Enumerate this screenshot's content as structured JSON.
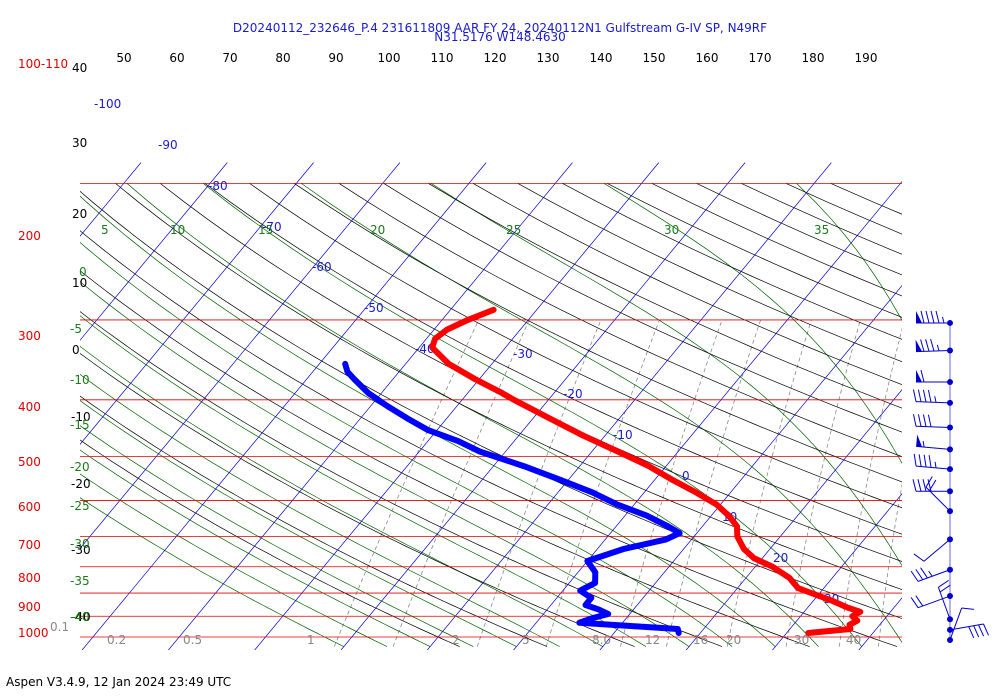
{
  "header": {
    "line1": "D20240112_232646_P.4 231611809 AAR FY 24, 20240112N1 Gulfstream G-IV SP, N49RF",
    "line2": "N31.5176 W148.4630"
  },
  "footer": {
    "version": "Aspen V3.4.9, 12 Jan 2024  23:49 UTC"
  },
  "colors": {
    "isobar": "#e00000",
    "isotherm": "#0000cc",
    "dry_adiabat": "#000000",
    "moist_adiabat": "#006400",
    "mixing_ratio": "#888888",
    "temperature": "#ff0000",
    "dewpoint": "#0000ff",
    "wind": "#0000cc"
  },
  "chart_data": {
    "type": "skew-t log-p",
    "pressure_axis": {
      "unit": "hPa",
      "labels": [
        "100-110",
        "200",
        "300",
        "400",
        "500",
        "600",
        "700",
        "800",
        "900",
        "1000"
      ]
    },
    "height_labels": [
      "40",
      "30",
      "20",
      "10",
      "0",
      "-10",
      "-20",
      "-30",
      "-40"
    ],
    "top_scale": [
      "50",
      "60",
      "70",
      "80",
      "90",
      "100",
      "110",
      "120",
      "130",
      "140",
      "150",
      "160",
      "170",
      "180",
      "190"
    ],
    "isotherm_labels": [
      "-100",
      "-90",
      "-80",
      "-70",
      "-60",
      "-50",
      "-40",
      "-30",
      "-20",
      "-10",
      "0",
      "10",
      "20",
      "30"
    ],
    "moist_top_labels": [
      "5",
      "10",
      "15",
      "20",
      "25",
      "30",
      "35"
    ],
    "moist_left_labels": [
      "0",
      "-5",
      "-10",
      "-15",
      "-20",
      "-25",
      "-30",
      "-35",
      "-40"
    ],
    "mixing_ratio_labels": [
      "0.1",
      "0.2",
      "0.5",
      "1",
      "2",
      "5",
      "8.0",
      "12",
      "16",
      "20",
      "30",
      "40"
    ],
    "temperature_profile": {
      "name": "Temperature",
      "pressure": [
        190,
        200,
        210,
        220,
        230,
        250,
        270,
        290,
        300,
        330,
        360,
        390,
        420,
        450,
        480,
        510,
        540,
        570,
        600,
        640,
        670,
        700,
        740,
        780,
        800,
        830,
        860,
        880,
        900,
        920,
        940,
        960,
        980
      ],
      "temp": [
        -55,
        -57,
        -58.5,
        -59,
        -58.5,
        -55,
        -50.5,
        -46,
        -44,
        -38,
        -32.5,
        -27,
        -22,
        -18,
        -14,
        -10.5,
        -8,
        -6,
        -5,
        -3,
        -1,
        2,
        5,
        7,
        9,
        12,
        14.5,
        16.5,
        16,
        17,
        16.5,
        17,
        12.5
      ]
    },
    "dewpoint_profile": {
      "name": "Dewpoint",
      "pressure": [
        250,
        260,
        270,
        290,
        310,
        330,
        350,
        370,
        390,
        420,
        450,
        480,
        510,
        540,
        570,
        590,
        610,
        640,
        680,
        720,
        760,
        790,
        820,
        850,
        870,
        890,
        910,
        930,
        945,
        960,
        980
      ],
      "dewpoint": [
        -67,
        -66,
        -64.5,
        -61.5,
        -58,
        -54.5,
        -51,
        -46.5,
        -43,
        -36.5,
        -31,
        -26,
        -22,
        -17.5,
        -14,
        -12,
        -13,
        -17,
        -20,
        -18,
        -17,
        -18,
        -16,
        -16,
        -14,
        -12.5,
        -14,
        -15,
        -9,
        -3,
        -2.5
      ]
    },
    "wind_barbs": [
      {
        "pressure": 200,
        "speed_kt": 95,
        "direction_deg": 270
      },
      {
        "pressure": 230,
        "speed_kt": 85,
        "direction_deg": 268
      },
      {
        "pressure": 270,
        "speed_kt": 60,
        "direction_deg": 270
      },
      {
        "pressure": 300,
        "speed_kt": 45,
        "direction_deg": 272
      },
      {
        "pressure": 340,
        "speed_kt": 40,
        "direction_deg": 272
      },
      {
        "pressure": 380,
        "speed_kt": 55,
        "direction_deg": 275
      },
      {
        "pressure": 420,
        "speed_kt": 45,
        "direction_deg": 275
      },
      {
        "pressure": 470,
        "speed_kt": 40,
        "direction_deg": 270
      },
      {
        "pressure": 520,
        "speed_kt": 20,
        "direction_deg": 315
      },
      {
        "pressure": 600,
        "speed_kt": 10,
        "direction_deg": 230
      },
      {
        "pressure": 700,
        "speed_kt": 35,
        "direction_deg": 250
      },
      {
        "pressure": 800,
        "speed_kt": 20,
        "direction_deg": 250
      },
      {
        "pressure": 900,
        "speed_kt": 20,
        "direction_deg": 340
      },
      {
        "pressure": 950,
        "speed_kt": 40,
        "direction_deg": 80
      },
      {
        "pressure": 1000,
        "speed_kt": 10,
        "direction_deg": 20
      }
    ]
  }
}
